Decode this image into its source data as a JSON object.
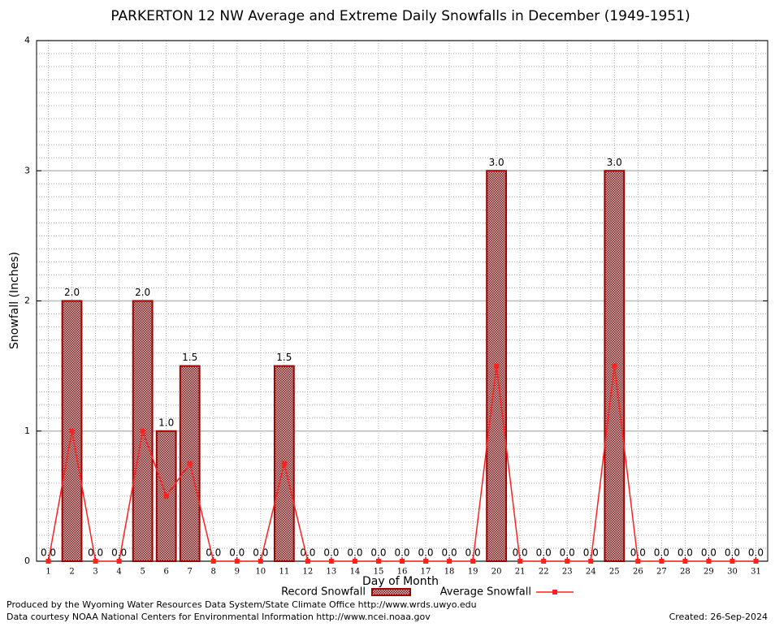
{
  "chart_data": {
    "type": "bar",
    "title": "PARKERTON 12 NW Average and Extreme Daily Snowfalls in December (1949-1951)",
    "x_label": "Day of Month",
    "y_label": "Snowfall (Inches)",
    "categories": [
      "1",
      "2",
      "3",
      "4",
      "5",
      "6",
      "7",
      "8",
      "9",
      "10",
      "11",
      "12",
      "13",
      "14",
      "15",
      "16",
      "17",
      "18",
      "19",
      "20",
      "21",
      "22",
      "23",
      "24",
      "25",
      "26",
      "27",
      "28",
      "29",
      "30",
      "31"
    ],
    "series": [
      {
        "name": "Record Snowfall",
        "type": "bar",
        "color": "#a00000",
        "values": [
          0,
          2,
          0,
          0,
          2,
          1,
          1.5,
          0,
          0,
          0,
          1.5,
          0,
          0,
          0,
          0,
          0,
          0,
          0,
          0,
          3,
          0,
          0,
          0,
          0,
          3,
          0,
          0,
          0,
          0,
          0,
          0
        ],
        "value_labels": [
          "0.0",
          "2.0",
          "0.0",
          "0.0",
          "2.0",
          "1.0",
          "1.5",
          "0.0",
          "0.0",
          "0.0",
          "1.5",
          "0.0",
          "0.0",
          "0.0",
          "0.0",
          "0.0",
          "0.0",
          "0.0",
          "0.0",
          "3.0",
          "0.0",
          "0.0",
          "0.0",
          "0.0",
          "3.0",
          "0.0",
          "0.0",
          "0.0",
          "0.0",
          "0.0",
          "0.0"
        ]
      },
      {
        "name": "Average Snowfall",
        "type": "line",
        "color": "#ff2020",
        "values": [
          0,
          1,
          0,
          0,
          1,
          0.5,
          0.75,
          0,
          0,
          0,
          0.75,
          0,
          0,
          0,
          0,
          0,
          0,
          0,
          0,
          1.5,
          0,
          0,
          0,
          0,
          1.5,
          0,
          0,
          0,
          0,
          0,
          0
        ]
      }
    ],
    "ylim": [
      0,
      4
    ],
    "yticks": [
      0,
      1,
      2,
      3,
      4
    ],
    "grid": true,
    "footer": [
      "Produced by the Wyoming Water Resources Data System/State Climate Office http://www.wrds.uwyo.edu",
      "Data courtesy NOAA National Centers for Environmental Information http://www.ncei.noaa.gov"
    ],
    "created": "Created:  26-Sep-2024"
  }
}
